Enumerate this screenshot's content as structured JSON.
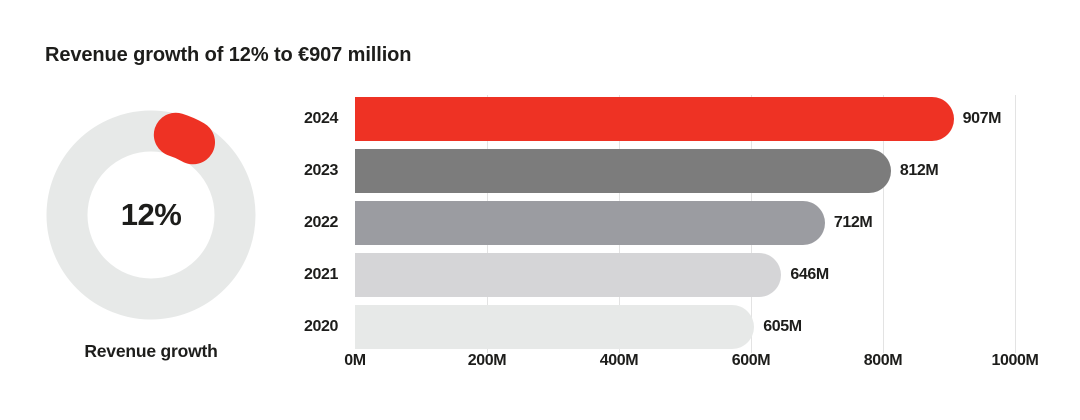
{
  "title": "Revenue growth of 12% to €907 million",
  "donut": {
    "percent": 12,
    "percent_label": "12%",
    "caption": "Revenue growth",
    "arc_color": "#ee3224",
    "ring_color": "#e7e9e8"
  },
  "chart_data": {
    "type": "bar",
    "orientation": "horizontal",
    "title": "Revenue growth of 12% to €907 million",
    "categories": [
      "2024",
      "2023",
      "2022",
      "2021",
      "2020"
    ],
    "values": [
      907,
      812,
      712,
      646,
      605
    ],
    "value_labels": [
      "907M",
      "812M",
      "712M",
      "646M",
      "605M"
    ],
    "bar_colors": [
      "#ee3224",
      "#7c7c7c",
      "#9b9ca1",
      "#d5d5d7",
      "#e7e9e8"
    ],
    "x_ticks": [
      "0M",
      "200M",
      "400M",
      "600M",
      "800M",
      "1000M"
    ],
    "xlim": [
      0,
      1000
    ],
    "grid": true,
    "legend_position": "none"
  }
}
